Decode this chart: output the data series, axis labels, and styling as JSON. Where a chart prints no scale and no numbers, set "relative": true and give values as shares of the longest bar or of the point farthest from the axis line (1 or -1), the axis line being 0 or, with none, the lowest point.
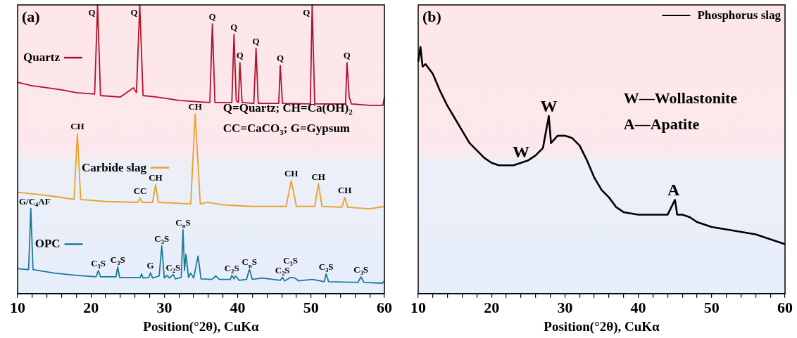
{
  "chart_data": [
    {
      "type": "line",
      "title": "(a)",
      "xlabel": "Position(°2θ), CuKα",
      "relative": true,
      "legend": "left",
      "marker": "none",
      "line_style": "solid",
      "xlim": [
        10,
        60
      ],
      "xticks": [
        10,
        {
          "value": 12,
          "label": null
        },
        {
          "value": 14,
          "label": null
        },
        {
          "value": 16,
          "label": null
        },
        {
          "value": 18,
          "label": null
        },
        20,
        {
          "value": 22,
          "label": null
        },
        {
          "value": 24,
          "label": null
        },
        {
          "value": 26,
          "label": null
        },
        {
          "value": 28,
          "label": null
        },
        30,
        {
          "value": 32,
          "label": null
        },
        {
          "value": 34,
          "label": null
        },
        {
          "value": 36,
          "label": null
        },
        {
          "value": 38,
          "label": null
        },
        40,
        {
          "value": 42,
          "label": null
        },
        {
          "value": 44,
          "label": null
        },
        {
          "value": 46,
          "label": null
        },
        {
          "value": 48,
          "label": null
        },
        50,
        {
          "value": 52,
          "label": null
        },
        {
          "value": 54,
          "label": null
        },
        {
          "value": 56,
          "label": null
        },
        {
          "value": 58,
          "label": null
        },
        60
      ],
      "series": [
        {
          "name": "Quartz",
          "color": "#b0122b",
          "x": [
            10,
            12,
            14,
            16,
            18,
            20.5,
            20.9,
            21.3,
            24,
            25.8,
            26.2,
            26.65,
            27.1,
            29,
            32,
            35,
            36.2,
            36.55,
            36.9,
            39.2,
            39.5,
            39.8,
            40.1,
            40.3,
            40.6,
            42.2,
            42.5,
            42.8,
            45.6,
            45.8,
            46.1,
            49.9,
            50.15,
            50.5,
            54.7,
            54.9,
            55.2,
            55.5,
            58,
            59.8,
            60
          ],
          "values": [
            0.732,
            0.72,
            0.713,
            0.706,
            0.696,
            0.691,
            1,
            0.686,
            0.681,
            0.713,
            0.696,
            1,
            0.686,
            0.681,
            0.669,
            0.664,
            0.662,
            0.934,
            0.662,
            0.662,
            0.898,
            0.669,
            0.662,
            0.8,
            0.662,
            0.659,
            0.85,
            0.659,
            0.659,
            0.79,
            0.659,
            0.657,
            1,
            0.657,
            0.657,
            0.8,
            0.681,
            0.657,
            0.652,
            0.652,
            0.681
          ]
        },
        {
          "name": "Carbide slag",
          "color": "#e8a128",
          "x": [
            10,
            13,
            16,
            17.7,
            18.15,
            18.6,
            22,
            26.4,
            26.7,
            27,
            28.4,
            28.8,
            29.2,
            33.6,
            34.2,
            34.9,
            35.9,
            38,
            42,
            46.6,
            47.3,
            48,
            50.5,
            51,
            51.5,
            54.2,
            54.6,
            55,
            58,
            60
          ],
          "values": [
            0.351,
            0.343,
            0.333,
            0.326,
            0.555,
            0.326,
            0.319,
            0.316,
            0.33,
            0.316,
            0.316,
            0.377,
            0.316,
            0.311,
            0.622,
            0.311,
            0.316,
            0.307,
            0.302,
            0.302,
            0.391,
            0.302,
            0.302,
            0.38,
            0.302,
            0.299,
            0.333,
            0.299,
            0.294,
            0.302
          ]
        },
        {
          "name": "OPC",
          "color": "#1a7a99",
          "x": [
            10,
            11.5,
            11.8,
            12.1,
            15,
            18,
            20.7,
            21,
            21.3,
            23.4,
            23.65,
            23.9,
            26.7,
            26.9,
            27.1,
            27.9,
            28.1,
            28.4,
            29.3,
            29.65,
            30,
            30.4,
            30.7,
            31.2,
            31.5,
            32.3,
            32.55,
            32.75,
            32.95,
            33.3,
            33.6,
            34,
            34.6,
            35,
            36.5,
            37,
            37.5,
            39,
            39.2,
            39.5,
            39.7,
            40.2,
            41.2,
            41.6,
            42,
            43.3,
            45.8,
            46.1,
            46.4,
            47.2,
            47.8,
            48.3,
            50.2,
            51.8,
            52.05,
            52.4,
            56.4,
            56.8,
            57.2,
            59.7,
            60
          ],
          "values": [
            0.086,
            0.083,
            0.295,
            0.083,
            0.071,
            0.063,
            0.058,
            0.08,
            0.058,
            0.058,
            0.092,
            0.056,
            0.056,
            0.068,
            0.054,
            0.056,
            0.072,
            0.054,
            0.061,
            0.165,
            0.054,
            0.063,
            0.054,
            0.066,
            0.051,
            0.056,
            0.221,
            0.08,
            0.136,
            0.056,
            0.071,
            0.054,
            0.13,
            0.051,
            0.049,
            0.061,
            0.049,
            0.049,
            0.063,
            0.051,
            0.061,
            0.046,
            0.049,
            0.084,
            0.049,
            0.054,
            0.046,
            0.056,
            0.044,
            0.056,
            0.054,
            0.044,
            0.049,
            0.041,
            0.068,
            0.041,
            0.039,
            0.058,
            0.039,
            0.036,
            0.044
          ]
        }
      ],
      "annotations": [
        {
          "text": "Q",
          "x": 20.9,
          "y": 1
        },
        {
          "text": "Q",
          "x": 26.65,
          "y": 1
        },
        {
          "text": "Q",
          "x": 36.55,
          "y": 0.934
        },
        {
          "text": "Q",
          "x": 39.5,
          "y": 0.898
        },
        {
          "text": "Q",
          "x": 40.3,
          "y": 0.8
        },
        {
          "text": "Q",
          "x": 42.5,
          "y": 0.85
        },
        {
          "text": "Q",
          "x": 45.8,
          "y": 0.79
        },
        {
          "text": "Q",
          "x": 50.15,
          "y": 1
        },
        {
          "text": "Q",
          "x": 54.9,
          "y": 0.8
        },
        {
          "text": "CH",
          "x": 18.15,
          "y": 0.555
        },
        {
          "text": "CH",
          "x": 34.2,
          "y": 0.622
        },
        {
          "text": "CC",
          "x": 26.7,
          "y": 0.33
        },
        {
          "text": "CH",
          "x": 28.8,
          "y": 0.377
        },
        {
          "text": "CH",
          "x": 47.3,
          "y": 0.391
        },
        {
          "text": "CH",
          "x": 51,
          "y": 0.38
        },
        {
          "text": "CH",
          "x": 54.6,
          "y": 0.333
        },
        {
          "text": "G/C$_{4}$AF",
          "x": 11.8,
          "y": 0.295
        },
        {
          "text": "C$_{3}$S",
          "x": 21,
          "y": 0.08
        },
        {
          "text": "C$_{3}$S",
          "x": 23.65,
          "y": 0.092
        },
        {
          "text": "G",
          "x": 28.1,
          "y": 0.072
        },
        {
          "text": "C$_{3}$S",
          "x": 29.65,
          "y": 0.165
        },
        {
          "text": "C$_{2}$S",
          "x": 31.2,
          "y": 0.066
        },
        {
          "text": "C$_{n}$S",
          "x": 32.55,
          "y": 0.221
        },
        {
          "text": "C$_{2}$S",
          "x": 39.2,
          "y": 0.063
        },
        {
          "text": "C$_{n}$S",
          "x": 41.6,
          "y": 0.084
        },
        {
          "text": "C$_{2}$S",
          "x": 46.1,
          "y": 0.056
        },
        {
          "text": "C$_{3}$S",
          "x": 47.2,
          "y": 0.056
        },
        {
          "text": "C$_{3}$S",
          "x": 52.05,
          "y": 0.068
        },
        {
          "text": "C$_{3}$S",
          "x": 56.8,
          "y": 0.058
        },
        "Q=Quartz; CH=Ca(OH)$_{2}$",
        "CC=CaCO$_{3}$; G=Gypsum"
      ]
    },
    {
      "type": "line",
      "title": "(b)",
      "xlabel": "Position(°2θ), CuKα",
      "relative": true,
      "legend": "top right",
      "marker": "none",
      "line_style": "solid",
      "xlim": [
        10,
        60
      ],
      "xticks": [
        10,
        {
          "value": 12,
          "label": null
        },
        {
          "value": 14,
          "label": null
        },
        {
          "value": 16,
          "label": null
        },
        {
          "value": 18,
          "label": null
        },
        20,
        {
          "value": 22,
          "label": null
        },
        {
          "value": 24,
          "label": null
        },
        {
          "value": 26,
          "label": null
        },
        {
          "value": 28,
          "label": null
        },
        30,
        {
          "value": 32,
          "label": null
        },
        {
          "value": 34,
          "label": null
        },
        {
          "value": 36,
          "label": null
        },
        {
          "value": 38,
          "label": null
        },
        40,
        {
          "value": 42,
          "label": null
        },
        {
          "value": 44,
          "label": null
        },
        {
          "value": 46,
          "label": null
        },
        {
          "value": 48,
          "label": null
        },
        50,
        {
          "value": 52,
          "label": null
        },
        {
          "value": 54,
          "label": null
        },
        {
          "value": 56,
          "label": null
        },
        {
          "value": 58,
          "label": null
        },
        60
      ],
      "series": [
        {
          "name": "Phosphorus slag",
          "color": "#000000",
          "x": [
            10,
            10.3,
            10.6,
            11,
            12,
            13,
            14,
            15,
            16,
            17,
            18,
            19,
            20,
            21,
            22,
            23,
            24,
            25,
            26,
            27,
            27.8,
            28.1,
            29,
            30,
            31,
            32,
            33,
            34,
            35,
            36,
            37,
            38,
            40,
            42,
            44,
            45,
            45.3,
            46,
            47,
            48,
            50,
            52,
            54,
            56,
            58,
            60
          ],
          "values": [
            0.94,
            1,
            0.92,
            0.93,
            0.89,
            0.82,
            0.76,
            0.71,
            0.66,
            0.61,
            0.58,
            0.55,
            0.53,
            0.52,
            0.52,
            0.52,
            0.53,
            0.54,
            0.56,
            0.59,
            0.72,
            0.61,
            0.64,
            0.64,
            0.63,
            0.6,
            0.54,
            0.47,
            0.42,
            0.39,
            0.35,
            0.33,
            0.32,
            0.32,
            0.32,
            0.38,
            0.32,
            0.32,
            0.31,
            0.29,
            0.27,
            0.26,
            0.25,
            0.24,
            0.22,
            0.2
          ]
        }
      ],
      "annotations": [
        {
          "text": "W",
          "x": 24,
          "y": 0.53
        },
        {
          "text": "W",
          "x": 27.8,
          "y": 0.72
        },
        {
          "text": "A",
          "x": 44.8,
          "y": 0.38
        },
        "W—Wollastonite",
        "A—Apatite"
      ]
    }
  ]
}
